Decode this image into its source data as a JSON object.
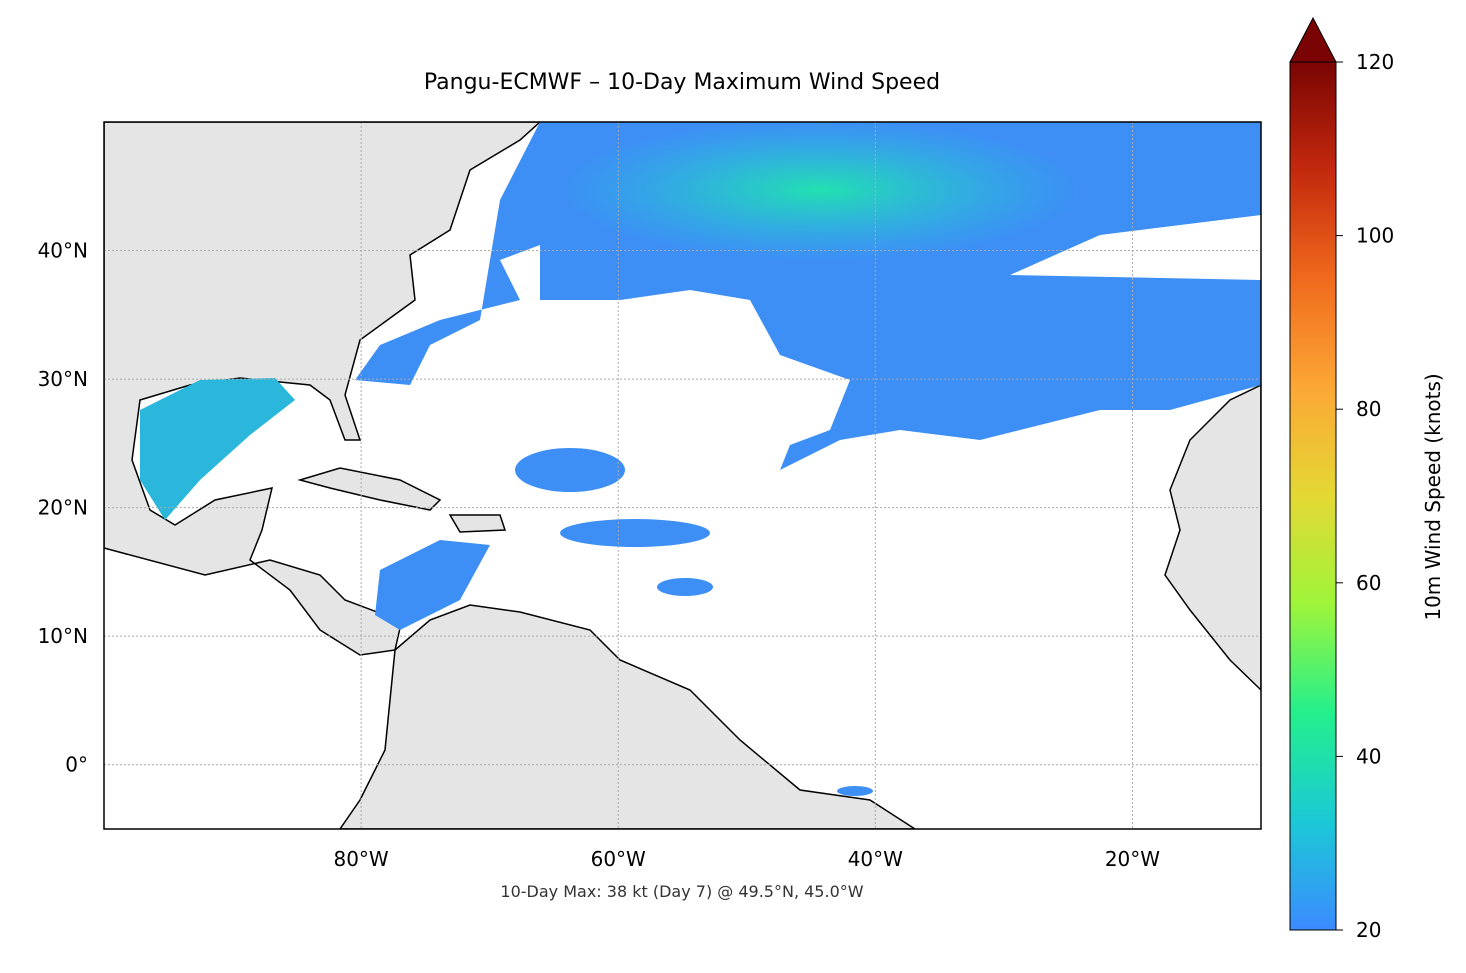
{
  "chart_data": {
    "type": "map",
    "title": "Pangu-ECMWF – 10-Day Maximum Wind Speed",
    "annotation": "10-Day Max: 38 kt (Day 7) @ 49.5°N, 45.0°W",
    "xlim": [
      -100,
      -10
    ],
    "ylim": [
      -5,
      50
    ],
    "xticks": [
      {
        "value": -80,
        "label": "80°W"
      },
      {
        "value": -60,
        "label": "60°W"
      },
      {
        "value": -40,
        "label": "40°W"
      },
      {
        "value": -20,
        "label": "20°W"
      }
    ],
    "yticks": [
      {
        "value": 0,
        "label": "0°"
      },
      {
        "value": 10,
        "label": "10°N"
      },
      {
        "value": 20,
        "label": "20°N"
      },
      {
        "value": 30,
        "label": "30°N"
      },
      {
        "value": 40,
        "label": "40°N"
      }
    ],
    "grid": true,
    "colorbar": {
      "label": "10m Wind Speed (knots)",
      "lim": [
        20,
        120
      ],
      "ticks": [
        20,
        40,
        60,
        80,
        100,
        120
      ],
      "colors": [
        "#3b8bff",
        "#1bc9d6",
        "#23f08c",
        "#9ef53a",
        "#e4d834",
        "#fca735",
        "#f06a1d",
        "#c4290d",
        "#7a0403"
      ]
    }
  }
}
